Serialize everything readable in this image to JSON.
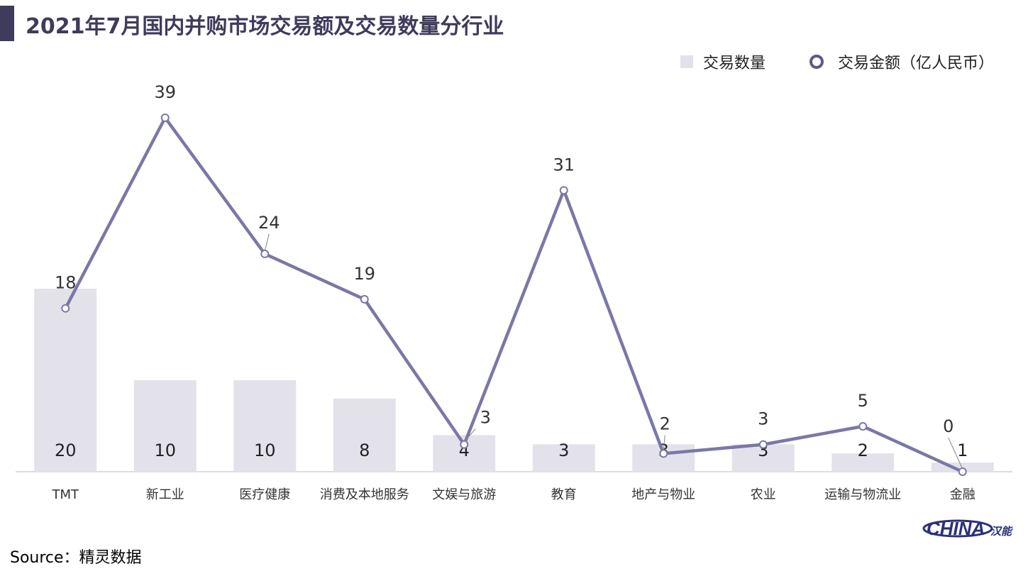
{
  "title": "2021年7月国内并购市场交易额及交易数量分行业",
  "source": "Source：精灵数据",
  "logo_text": "CHINA",
  "logo_mark": "汉能",
  "colors": {
    "bar": "#e3e2ea",
    "line": "#7a77a8",
    "title": "#3f3b5c"
  },
  "chart_data": {
    "type": "bar+line",
    "title": "2021年7月国内并购市场交易额及交易数量分行业",
    "categories": [
      "TMT",
      "新工业",
      "医疗健康",
      "消费及本地服务",
      "文娱与旅游",
      "教育",
      "地产与物业",
      "农业",
      "运输与物流业",
      "金融"
    ],
    "series": [
      {
        "name": "交易数量",
        "type": "bar",
        "values": [
          20,
          10,
          10,
          8,
          4,
          3,
          3,
          3,
          2,
          1
        ]
      },
      {
        "name": "交易金额（亿人民币）",
        "type": "line",
        "values": [
          18,
          39,
          24,
          19,
          3,
          31,
          2,
          3,
          5,
          0
        ]
      }
    ],
    "legend": [
      "交易数量",
      "交易金额（亿人民币）"
    ],
    "legend_position": "top-right",
    "grid": false
  }
}
